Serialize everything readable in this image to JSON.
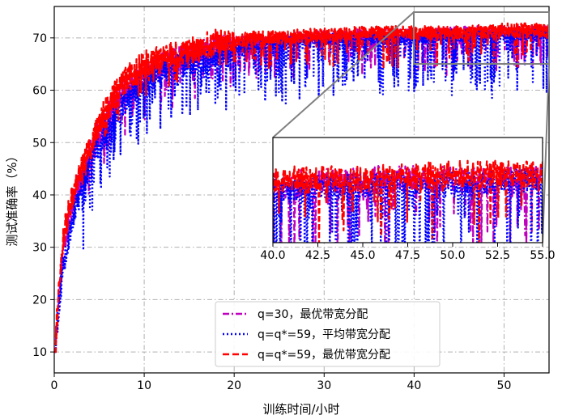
{
  "chart_data": {
    "type": "line",
    "title": "",
    "xlabel": "训练时间/小时",
    "ylabel": "测试准确率（%）",
    "xlim": [
      0,
      55
    ],
    "ylim": [
      6,
      76
    ],
    "x_ticks": [
      "0",
      "10",
      "20",
      "30",
      "40",
      "50"
    ],
    "y_ticks": [
      "10",
      "20",
      "30",
      "40",
      "50",
      "60",
      "70"
    ],
    "grid": true,
    "legend_position": "lower-right",
    "series": [
      {
        "name": "q=30，最优带宽分配",
        "color": "#bf00bf",
        "style": "dashdot",
        "x": [
          0,
          1,
          2,
          3,
          4,
          5,
          6,
          7,
          8,
          10,
          12,
          14,
          16,
          18,
          20,
          22,
          25,
          28,
          30,
          35,
          40,
          45,
          50,
          55
        ],
        "y": [
          10,
          30,
          38,
          43,
          48,
          52,
          55,
          58,
          60,
          63,
          65,
          66,
          67,
          68,
          69,
          69,
          69.5,
          70,
          70,
          70.5,
          70.5,
          71,
          71,
          71
        ]
      },
      {
        "name": "q=q*=59，平均带宽分配",
        "color": "#0000ff",
        "style": "dotted",
        "x": [
          0,
          1,
          2,
          3,
          4,
          5,
          6,
          7,
          8,
          10,
          12,
          14,
          16,
          18,
          20,
          22,
          25,
          28,
          30,
          35,
          40,
          45,
          50,
          55
        ],
        "y": [
          10,
          27,
          35,
          41,
          46,
          50,
          53,
          56,
          58,
          62,
          64,
          65,
          66,
          67,
          68,
          68.5,
          69,
          69.5,
          69.5,
          70,
          70,
          70.5,
          70.5,
          71
        ]
      },
      {
        "name": "q=q*=59，最优带宽分配",
        "color": "#ff0000",
        "style": "dashed",
        "x": [
          0,
          1,
          2,
          3,
          4,
          5,
          6,
          7,
          8,
          10,
          12,
          14,
          16,
          18,
          20,
          22,
          25,
          28,
          30,
          35,
          40,
          45,
          50,
          55
        ],
        "y": [
          10,
          32,
          40,
          45,
          50,
          54,
          57,
          60,
          62,
          65,
          66,
          67,
          68,
          69,
          69.5,
          70,
          70,
          70.5,
          70.5,
          71,
          71,
          71,
          71.5,
          71.5
        ]
      }
    ],
    "inset": {
      "xlim": [
        40,
        55
      ],
      "ylim": [
        65,
        75
      ],
      "x_ticks": [
        "40.0",
        "42.5",
        "45.0",
        "47.5",
        "50.0",
        "52.5",
        "55.0"
      ]
    }
  }
}
